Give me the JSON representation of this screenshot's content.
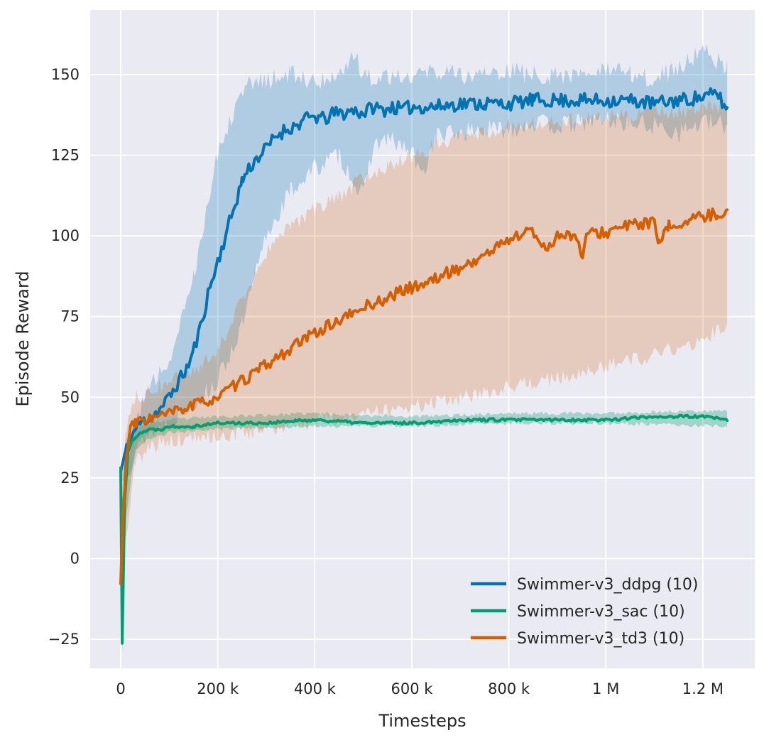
{
  "chart_data": {
    "type": "line",
    "title": "",
    "xlabel": "Timesteps",
    "ylabel": "Episode Reward",
    "xlim": [
      -63000,
      1307000
    ],
    "ylim": [
      -34,
      170
    ],
    "grid": true,
    "background_color": "#eaeaf2",
    "grid_color": "#ffffff",
    "tick_color": "#262626",
    "legend_position": "lower right",
    "x_ticks": [
      {
        "value": 0,
        "label": "0"
      },
      {
        "value": 200000,
        "label": "200 k"
      },
      {
        "value": 400000,
        "label": "400 k"
      },
      {
        "value": 600000,
        "label": "600 k"
      },
      {
        "value": 800000,
        "label": "800 k"
      },
      {
        "value": 1000000,
        "label": "1 M"
      },
      {
        "value": 1200000,
        "label": "1.2 M"
      }
    ],
    "y_ticks": [
      {
        "value": -25,
        "label": "−25"
      },
      {
        "value": 0,
        "label": "0"
      },
      {
        "value": 25,
        "label": "25"
      },
      {
        "value": 50,
        "label": "50"
      },
      {
        "value": 75,
        "label": "75"
      },
      {
        "value": 100,
        "label": "100"
      },
      {
        "value": 125,
        "label": "125"
      },
      {
        "value": 150,
        "label": "150"
      }
    ],
    "series": [
      {
        "name": "Swimmer-v3_ddpg (10)",
        "color": "#0173b2",
        "band_alpha": 0.25,
        "noise": 2.2,
        "band_noise": 3.2,
        "seed": 11,
        "keypoints": [
          [
            0,
            27
          ],
          [
            10000,
            33
          ],
          [
            20000,
            37
          ],
          [
            30000,
            40
          ],
          [
            40000,
            42
          ],
          [
            60000,
            44
          ],
          [
            80000,
            46
          ],
          [
            100000,
            50
          ],
          [
            120000,
            55
          ],
          [
            140000,
            60
          ],
          [
            160000,
            69
          ],
          [
            180000,
            82
          ],
          [
            200000,
            92
          ],
          [
            220000,
            102
          ],
          [
            240000,
            112
          ],
          [
            250000,
            117
          ],
          [
            260000,
            120
          ],
          [
            280000,
            124
          ],
          [
            300000,
            127
          ],
          [
            320000,
            131
          ],
          [
            340000,
            133
          ],
          [
            360000,
            134
          ],
          [
            380000,
            136
          ],
          [
            400000,
            137
          ],
          [
            420000,
            136
          ],
          [
            440000,
            138
          ],
          [
            460000,
            138
          ],
          [
            480000,
            139
          ],
          [
            500000,
            138
          ],
          [
            520000,
            140
          ],
          [
            540000,
            139
          ],
          [
            560000,
            140
          ],
          [
            580000,
            139
          ],
          [
            600000,
            140
          ],
          [
            650000,
            140
          ],
          [
            700000,
            141
          ],
          [
            750000,
            141
          ],
          [
            800000,
            141
          ],
          [
            850000,
            142
          ],
          [
            900000,
            142
          ],
          [
            950000,
            142
          ],
          [
            1000000,
            142
          ],
          [
            1050000,
            142
          ],
          [
            1100000,
            141
          ],
          [
            1150000,
            142
          ],
          [
            1200000,
            143
          ],
          [
            1230000,
            144
          ],
          [
            1250000,
            139
          ]
        ],
        "band_low": [
          [
            0,
            24
          ],
          [
            50000,
            38
          ],
          [
            100000,
            42
          ],
          [
            150000,
            48
          ],
          [
            200000,
            55
          ],
          [
            250000,
            72
          ],
          [
            300000,
            100
          ],
          [
            350000,
            114
          ],
          [
            400000,
            121
          ],
          [
            450000,
            125
          ],
          [
            500000,
            112
          ],
          [
            520000,
            128
          ],
          [
            550000,
            130
          ],
          [
            600000,
            126
          ],
          [
            620000,
            118
          ],
          [
            650000,
            131
          ],
          [
            700000,
            132
          ],
          [
            750000,
            133
          ],
          [
            800000,
            133
          ],
          [
            850000,
            135
          ],
          [
            900000,
            134
          ],
          [
            950000,
            135
          ],
          [
            1000000,
            136
          ],
          [
            1050000,
            135
          ],
          [
            1100000,
            134
          ],
          [
            1150000,
            132
          ],
          [
            1200000,
            135
          ],
          [
            1250000,
            134
          ]
        ],
        "band_high": [
          [
            0,
            30
          ],
          [
            50000,
            50
          ],
          [
            100000,
            62
          ],
          [
            150000,
            88
          ],
          [
            200000,
            126
          ],
          [
            250000,
            146
          ],
          [
            300000,
            148
          ],
          [
            350000,
            150
          ],
          [
            400000,
            148
          ],
          [
            450000,
            150
          ],
          [
            480000,
            157
          ],
          [
            500000,
            149
          ],
          [
            550000,
            150
          ],
          [
            600000,
            150
          ],
          [
            650000,
            151
          ],
          [
            700000,
            150
          ],
          [
            750000,
            150
          ],
          [
            800000,
            151
          ],
          [
            850000,
            150
          ],
          [
            900000,
            150
          ],
          [
            950000,
            150
          ],
          [
            1000000,
            151
          ],
          [
            1050000,
            150
          ],
          [
            1100000,
            149
          ],
          [
            1150000,
            152
          ],
          [
            1200000,
            158
          ],
          [
            1250000,
            152
          ]
        ]
      },
      {
        "name": "Swimmer-v3_sac (10)",
        "color": "#029e73",
        "band_alpha": 0.3,
        "noise": 0.45,
        "band_noise": 0.6,
        "seed": 22,
        "keypoints": [
          [
            0,
            28
          ],
          [
            3000,
            -26
          ],
          [
            8000,
            18
          ],
          [
            15000,
            33
          ],
          [
            25000,
            37
          ],
          [
            40000,
            39
          ],
          [
            60000,
            40
          ],
          [
            80000,
            40
          ],
          [
            100000,
            41
          ],
          [
            150000,
            41
          ],
          [
            200000,
            42
          ],
          [
            300000,
            42
          ],
          [
            400000,
            43
          ],
          [
            500000,
            42
          ],
          [
            600000,
            42
          ],
          [
            700000,
            43
          ],
          [
            800000,
            43
          ],
          [
            900000,
            43
          ],
          [
            1000000,
            43
          ],
          [
            1100000,
            44
          ],
          [
            1200000,
            44
          ],
          [
            1250000,
            43
          ]
        ],
        "band_low": [
          [
            0,
            25
          ],
          [
            3000,
            -30
          ],
          [
            10000,
            12
          ],
          [
            30000,
            34
          ],
          [
            60000,
            37
          ],
          [
            100000,
            39
          ],
          [
            200000,
            40
          ],
          [
            400000,
            41
          ],
          [
            600000,
            41
          ],
          [
            800000,
            42
          ],
          [
            1000000,
            42
          ],
          [
            1250000,
            41
          ]
        ],
        "band_high": [
          [
            0,
            32
          ],
          [
            3000,
            -20
          ],
          [
            10000,
            26
          ],
          [
            30000,
            40
          ],
          [
            60000,
            42
          ],
          [
            100000,
            43
          ],
          [
            200000,
            44
          ],
          [
            400000,
            45
          ],
          [
            600000,
            44
          ],
          [
            800000,
            45
          ],
          [
            1000000,
            45
          ],
          [
            1250000,
            46
          ]
        ]
      },
      {
        "name": "Swimmer-v3_td3 (10)",
        "color": "#d55e00",
        "band_alpha": 0.22,
        "noise": 1.8,
        "band_noise": 2.5,
        "seed": 33,
        "keypoints": [
          [
            0,
            -8
          ],
          [
            5000,
            15
          ],
          [
            10000,
            28
          ],
          [
            15000,
            35
          ],
          [
            20000,
            40
          ],
          [
            30000,
            42
          ],
          [
            50000,
            43
          ],
          [
            80000,
            44
          ],
          [
            100000,
            45
          ],
          [
            140000,
            47
          ],
          [
            180000,
            49
          ],
          [
            200000,
            50
          ],
          [
            240000,
            54
          ],
          [
            280000,
            58
          ],
          [
            300000,
            60
          ],
          [
            340000,
            64
          ],
          [
            380000,
            68
          ],
          [
            400000,
            70
          ],
          [
            440000,
            73
          ],
          [
            480000,
            76
          ],
          [
            500000,
            78
          ],
          [
            540000,
            80
          ],
          [
            580000,
            83
          ],
          [
            600000,
            84
          ],
          [
            640000,
            86
          ],
          [
            680000,
            89
          ],
          [
            700000,
            90
          ],
          [
            740000,
            93
          ],
          [
            780000,
            97
          ],
          [
            800000,
            99
          ],
          [
            820000,
            100
          ],
          [
            840000,
            102
          ],
          [
            860000,
            99
          ],
          [
            880000,
            96
          ],
          [
            900000,
            100
          ],
          [
            920000,
            101
          ],
          [
            940000,
            99
          ],
          [
            950000,
            93
          ],
          [
            960000,
            100
          ],
          [
            980000,
            101
          ],
          [
            1000000,
            101
          ],
          [
            1040000,
            103
          ],
          [
            1080000,
            104
          ],
          [
            1100000,
            104
          ],
          [
            1110000,
            97
          ],
          [
            1130000,
            103
          ],
          [
            1160000,
            104
          ],
          [
            1200000,
            106
          ],
          [
            1230000,
            107
          ],
          [
            1250000,
            107
          ]
        ],
        "band_low": [
          [
            0,
            -25
          ],
          [
            10000,
            5
          ],
          [
            30000,
            30
          ],
          [
            60000,
            35
          ],
          [
            100000,
            36
          ],
          [
            150000,
            38
          ],
          [
            200000,
            38
          ],
          [
            300000,
            40
          ],
          [
            400000,
            42
          ],
          [
            500000,
            45
          ],
          [
            600000,
            47
          ],
          [
            700000,
            50
          ],
          [
            800000,
            53
          ],
          [
            900000,
            56
          ],
          [
            1000000,
            60
          ],
          [
            1100000,
            63
          ],
          [
            1200000,
            68
          ],
          [
            1250000,
            73
          ]
        ],
        "band_high": [
          [
            0,
            10
          ],
          [
            10000,
            40
          ],
          [
            30000,
            50
          ],
          [
            60000,
            52
          ],
          [
            100000,
            55
          ],
          [
            150000,
            57
          ],
          [
            200000,
            65
          ],
          [
            250000,
            80
          ],
          [
            300000,
            95
          ],
          [
            350000,
            103
          ],
          [
            400000,
            108
          ],
          [
            450000,
            112
          ],
          [
            500000,
            118
          ],
          [
            550000,
            122
          ],
          [
            600000,
            125
          ],
          [
            650000,
            128
          ],
          [
            700000,
            131
          ],
          [
            750000,
            132
          ],
          [
            800000,
            134
          ],
          [
            850000,
            135
          ],
          [
            900000,
            136
          ],
          [
            950000,
            136
          ],
          [
            1000000,
            137
          ],
          [
            1050000,
            137
          ],
          [
            1100000,
            139
          ],
          [
            1150000,
            138
          ],
          [
            1200000,
            140
          ],
          [
            1250000,
            140
          ]
        ]
      }
    ]
  }
}
